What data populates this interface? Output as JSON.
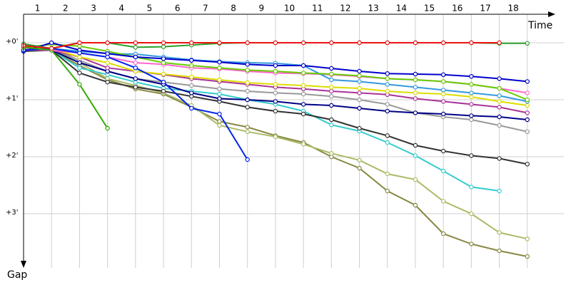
{
  "chart_data": {
    "type": "line",
    "x_label": "Time",
    "y_label": "Gap",
    "x": [
      0,
      1,
      2,
      3,
      4,
      5,
      6,
      7,
      8,
      9,
      10,
      11,
      12,
      13,
      14,
      15,
      16,
      17,
      18
    ],
    "xlim": [
      0,
      19
    ],
    "xticks": [
      {
        "value": 0.5,
        "label": "1"
      },
      {
        "value": 1.5,
        "label": "2"
      },
      {
        "value": 2.5,
        "label": "3"
      },
      {
        "value": 3.5,
        "label": "4"
      },
      {
        "value": 4.5,
        "label": "5"
      },
      {
        "value": 5.5,
        "label": "6"
      },
      {
        "value": 6.5,
        "label": "7"
      },
      {
        "value": 7.5,
        "label": "8"
      },
      {
        "value": 8.5,
        "label": "9"
      },
      {
        "value": 9.5,
        "label": "10"
      },
      {
        "value": 10.5,
        "label": "11"
      },
      {
        "value": 11.5,
        "label": "12"
      },
      {
        "value": 12.5,
        "label": "13"
      },
      {
        "value": 13.5,
        "label": "14"
      },
      {
        "value": 14.5,
        "label": "15"
      },
      {
        "value": 15.5,
        "label": "16"
      },
      {
        "value": 16.5,
        "label": "17"
      },
      {
        "value": 17.5,
        "label": "18"
      }
    ],
    "ylim": [
      -0.5,
      3.95
    ],
    "yticks": [
      {
        "value": 0,
        "label": "+0'"
      },
      {
        "value": 1,
        "label": "+1'"
      },
      {
        "value": 2,
        "label": "+2'"
      },
      {
        "value": 3,
        "label": "+3'"
      }
    ],
    "grid": true,
    "series": [
      {
        "color": "#888844",
        "values": [
          0.08,
          0.13,
          0.4,
          0.65,
          0.81,
          0.9,
          1.13,
          1.38,
          1.48,
          1.63,
          1.75,
          2,
          2.2,
          2.6,
          2.85,
          3.35,
          3.53,
          3.65,
          3.75
        ]
      },
      {
        "color": "#aabb66",
        "values": [
          0.08,
          0.1,
          0.35,
          0.63,
          0.75,
          0.88,
          1.1,
          1.45,
          1.56,
          1.65,
          1.78,
          1.94,
          2.06,
          2.3,
          2.4,
          2.78,
          3.0,
          3.33,
          3.44
        ]
      },
      {
        "color": "#33cccc",
        "values": [
          0.13,
          0.13,
          0.44,
          0.56,
          0.69,
          0.8,
          0.85,
          0.9,
          1,
          1.08,
          1.2,
          1.44,
          1.55,
          1.75,
          1.98,
          2.25,
          2.53,
          2.6,
          null
        ]
      },
      {
        "color": "#333333",
        "values": [
          0.15,
          0.13,
          0.53,
          0.69,
          0.78,
          0.85,
          0.94,
          1.03,
          1.13,
          1.2,
          1.25,
          1.35,
          1.5,
          1.63,
          1.8,
          1.9,
          1.98,
          2.03,
          2.13
        ]
      },
      {
        "color": "#999999",
        "values": [
          0.08,
          0.1,
          0.31,
          0.5,
          0.63,
          0.69,
          0.75,
          0.81,
          0.85,
          0.88,
          0.9,
          0.94,
          1,
          1.08,
          1.23,
          1.3,
          1.35,
          1.45,
          1.56
        ]
      },
      {
        "color": "#000088",
        "values": [
          0.13,
          0.13,
          0.35,
          0.5,
          0.63,
          0.73,
          0.88,
          0.98,
          1,
          1.03,
          1.08,
          1.1,
          1.15,
          1.2,
          1.23,
          1.25,
          1.28,
          1.3,
          1.35
        ]
      },
      {
        "color": "#aa3399",
        "values": [
          0.13,
          0.13,
          0.25,
          0.44,
          0.5,
          0.56,
          0.63,
          0.68,
          0.73,
          0.78,
          0.81,
          0.85,
          0.88,
          0.91,
          0.98,
          1.03,
          1.08,
          1.13,
          1.23
        ]
      },
      {
        "color": "#dddd00",
        "values": [
          0.08,
          0.1,
          0.25,
          0.35,
          0.5,
          0.55,
          0.6,
          0.65,
          0.7,
          0.73,
          0.75,
          0.78,
          0.8,
          0.85,
          0.88,
          0.9,
          0.95,
          1.03,
          1.1
        ]
      },
      {
        "color": "#ff66cc",
        "values": [
          0.1,
          0.13,
          0.18,
          0.25,
          0.35,
          0.38,
          0.44,
          0.46,
          0.5,
          0.53,
          0.54,
          0.56,
          0.59,
          0.63,
          0.65,
          0.68,
          0.73,
          0.8,
          0.88
        ]
      },
      {
        "color": "#3399dd",
        "values": [
          0.13,
          0.1,
          0.15,
          0.19,
          0.2,
          0.25,
          0.3,
          0.33,
          0.35,
          0.36,
          0.4,
          0.65,
          0.68,
          0.73,
          0.78,
          0.83,
          0.88,
          0.93,
          1.03
        ]
      },
      {
        "color": "#66cc00",
        "values": [
          0.08,
          0.03,
          0.06,
          0.15,
          0.25,
          0.35,
          0.4,
          0.44,
          0.48,
          0.5,
          0.53,
          0.55,
          0.58,
          0.63,
          0.65,
          0.68,
          0.73,
          0.8,
          1.0
        ]
      },
      {
        "color": "#0000cc",
        "values": [
          0.15,
          0,
          0.13,
          0.19,
          0.25,
          0.28,
          0.31,
          0.34,
          0.38,
          0.4,
          0.4,
          0.45,
          0.5,
          0.54,
          0.55,
          0.56,
          0.59,
          0.63,
          0.68
        ]
      },
      {
        "color": "#0022ee",
        "values": [
          0.13,
          0.1,
          0.18,
          0.25,
          0.44,
          0.69,
          1.15,
          1.25,
          2.05,
          null,
          null,
          null,
          null,
          null,
          null,
          null,
          null,
          null,
          null
        ]
      },
      {
        "color": "#33aa00",
        "values": [
          0.08,
          0.13,
          0.73,
          1.5,
          null,
          null,
          null,
          null,
          null,
          null,
          null,
          null,
          null,
          null,
          null,
          null,
          null,
          null,
          null
        ]
      },
      {
        "color": "#2ca02c",
        "values": [
          0.02,
          0.1,
          0,
          0,
          0.08,
          0.07,
          0.04,
          0.01,
          0,
          0,
          0,
          0,
          0,
          0,
          0,
          0,
          0,
          0.01,
          0.01
        ]
      },
      {
        "color": "#ee1111",
        "values": [
          0.05,
          0.1,
          0,
          0,
          0,
          0,
          0,
          0,
          0,
          0,
          0,
          0,
          0,
          0,
          0,
          0,
          0,
          0,
          null
        ]
      }
    ]
  }
}
